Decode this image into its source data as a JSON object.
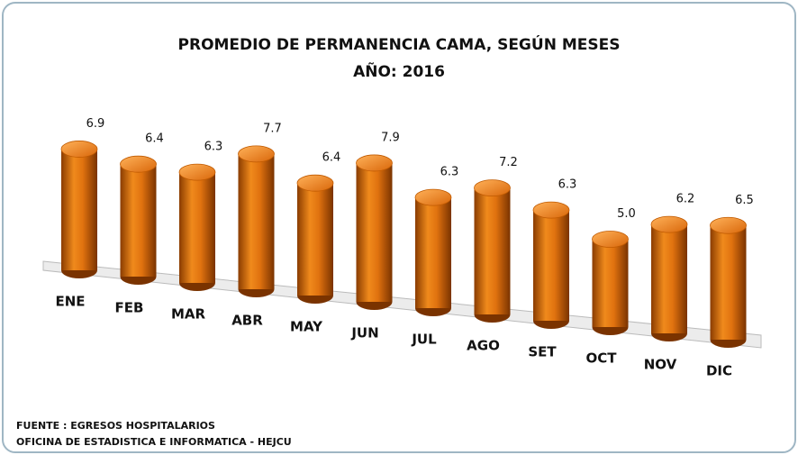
{
  "chart_data": {
    "type": "bar3d",
    "title": "PROMEDIO DE PERMANENCIA CAMA, SEGÚN MESES",
    "subtitle": "AÑO: 2016",
    "categories": [
      "ENE",
      "FEB",
      "MAR",
      "ABR",
      "MAY",
      "JUN",
      "JUL",
      "AGO",
      "SET",
      "OCT",
      "NOV",
      "DIC"
    ],
    "values": [
      6.9,
      6.4,
      6.3,
      7.7,
      6.4,
      7.9,
      6.3,
      7.2,
      6.3,
      5.0,
      6.2,
      6.5
    ],
    "value_labels": [
      "6.9",
      "6.4",
      "6.3",
      "7.7",
      "6.4",
      "7.9",
      "6.3",
      "7.2",
      "6.3",
      "5.0",
      "6.2",
      "6.5"
    ],
    "color": "#e0720f",
    "footnotes": [
      "FUENTE : EGRESOS HOSPITALARIOS",
      "OFICINA DE ESTADISTICA E INFORMATICA - HEJCU"
    ]
  }
}
